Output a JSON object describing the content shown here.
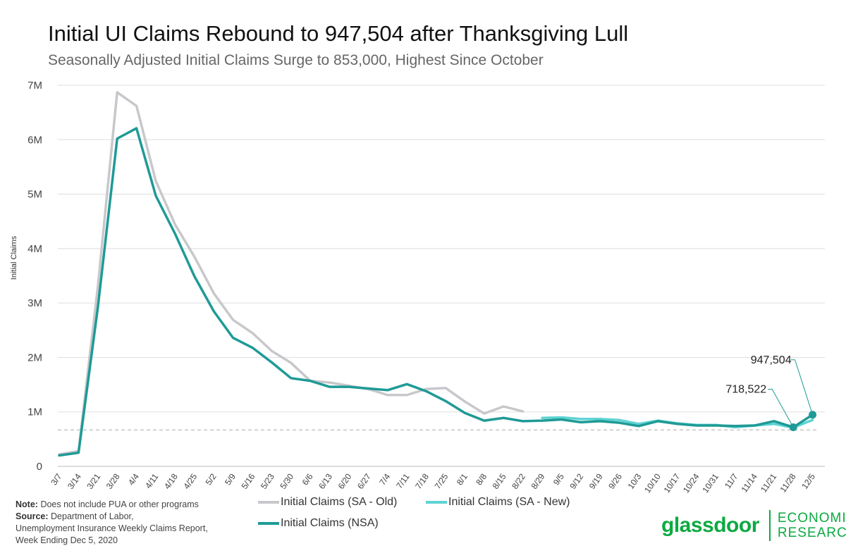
{
  "header": {
    "title": "Initial UI Claims Rebound to 947,504 after Thanksgiving Lull",
    "subtitle": "Seasonally Adjusted Initial Claims Surge to 853,000, Highest Since October"
  },
  "notes": {
    "note_label": "Note:",
    "note_text": "Does not include PUA or other programs",
    "source_label": "Source:",
    "source_line1": "Department of Labor,",
    "source_line2": "Unemployment Insurance Weekly Claims Report,",
    "source_line3": "Week Ending Dec 5, 2020"
  },
  "logo": {
    "word": "glassdoor",
    "sub_line1": "ECONOMIC",
    "sub_line2": "RESEARCH"
  },
  "chart_data": {
    "type": "line",
    "ylabel": "Initial Claims",
    "ylim": [
      0,
      7000000
    ],
    "yticks": [
      {
        "value": 0,
        "label": "0"
      },
      {
        "value": 1000000,
        "label": "1M"
      },
      {
        "value": 2000000,
        "label": "2M"
      },
      {
        "value": 3000000,
        "label": "3M"
      },
      {
        "value": 4000000,
        "label": "4M"
      },
      {
        "value": 5000000,
        "label": "5M"
      },
      {
        "value": 6000000,
        "label": "6M"
      },
      {
        "value": 7000000,
        "label": "7M"
      }
    ],
    "categories": [
      "3/7",
      "3/14",
      "3/21",
      "3/28",
      "4/4",
      "4/11",
      "4/18",
      "4/25",
      "5/2",
      "5/9",
      "5/16",
      "5/23",
      "5/30",
      "6/6",
      "6/13",
      "6/20",
      "6/27",
      "7/4",
      "7/11",
      "7/18",
      "7/25",
      "8/1",
      "8/8",
      "8/15",
      "8/22",
      "8/29",
      "9/5",
      "9/12",
      "9/19",
      "9/26",
      "10/3",
      "10/10",
      "10/17",
      "10/24",
      "10/31",
      "11/7",
      "11/14",
      "11/21",
      "11/28",
      "12/5"
    ],
    "grid": true,
    "legend_position": "bottom",
    "reference_line": {
      "value": 670000,
      "style": "dashed"
    },
    "series": [
      {
        "name": "Initial Claims (SA - Old)",
        "color": "#c8c8cc",
        "values": [
          220000,
          280000,
          3300000,
          6870000,
          6620000,
          5240000,
          4440000,
          3850000,
          3180000,
          2690000,
          2450000,
          2120000,
          1900000,
          1570000,
          1540000,
          1480000,
          1420000,
          1310000,
          1310000,
          1420000,
          1440000,
          1190000,
          970000,
          1100000,
          1010000,
          null,
          null,
          null,
          null,
          null,
          null,
          null,
          null,
          null,
          null,
          null,
          null,
          null,
          null,
          null
        ]
      },
      {
        "name": "Initial Claims (SA - New)",
        "color": "#5fd3d3",
        "values": [
          null,
          null,
          null,
          null,
          null,
          null,
          null,
          null,
          null,
          null,
          null,
          null,
          null,
          null,
          null,
          null,
          null,
          null,
          null,
          null,
          null,
          null,
          null,
          null,
          null,
          890000,
          900000,
          870000,
          870000,
          850000,
          780000,
          840000,
          790000,
          760000,
          760000,
          720000,
          750000,
          780000,
          712000,
          853000
        ]
      },
      {
        "name": "Initial Claims (NSA)",
        "color": "#1f9a96",
        "values": [
          200000,
          250000,
          2920000,
          6020000,
          6210000,
          4970000,
          4270000,
          3490000,
          2850000,
          2360000,
          2180000,
          1910000,
          1620000,
          1570000,
          1460000,
          1460000,
          1430000,
          1400000,
          1510000,
          1380000,
          1200000,
          980000,
          840000,
          890000,
          830000,
          840000,
          860000,
          810000,
          830000,
          800000,
          740000,
          830000,
          780000,
          750000,
          750000,
          740000,
          750000,
          830000,
          718522,
          947504
        ]
      }
    ],
    "annotations": [
      {
        "category": "11/28",
        "series": "Initial Claims (NSA)",
        "label": "718,522"
      },
      {
        "category": "12/5",
        "series": "Initial Claims (NSA)",
        "label": "947,504"
      }
    ]
  }
}
